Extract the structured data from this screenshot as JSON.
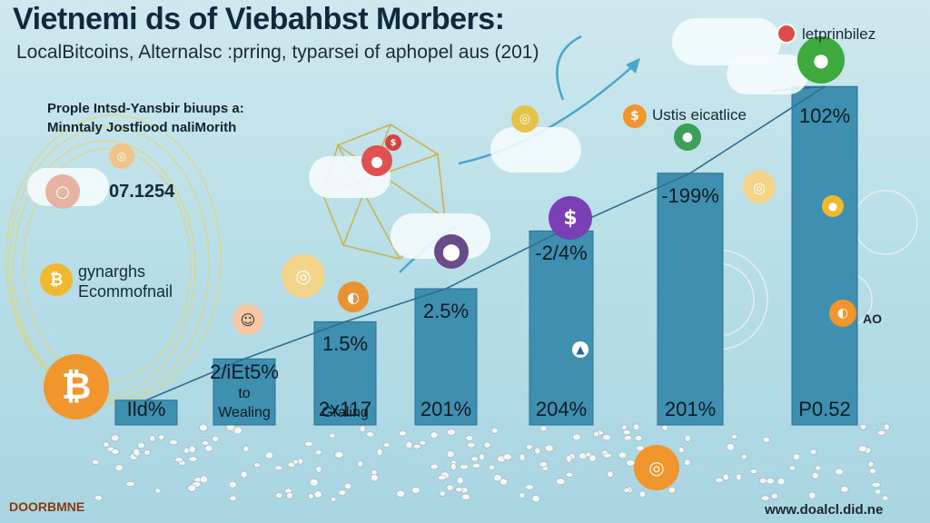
{
  "header": {
    "title": "Vietnemi ds of Viebahbst Morbers:",
    "subtitle": "LocalBitcoins, Alternalsc :prring, typarsei of aphopel aus (201)",
    "brand": "letprinbilez"
  },
  "left_panel": {
    "note_line1": "Prople Intsd-Yansbir biuups a:",
    "note_line2": "Minntaly Jostfiood naliMorith",
    "number": "07.1254",
    "label_line1": "gynarghs",
    "label_line2": "Ecommofnail"
  },
  "usd_label": "Ustis eicatlice",
  "side_mark": "AO",
  "chart_data": {
    "type": "bar",
    "bars": [
      {
        "value": 0.6,
        "top_label": "",
        "bottom_label": "Ild%",
        "sub_label": ""
      },
      {
        "value": 1.6,
        "top_label": "2/iEt5%",
        "bottom_label": "",
        "sub_label": "to\nWealing"
      },
      {
        "value": 2.5,
        "top_label": "1.5%",
        "bottom_label": "2x117",
        "sub_label": "Graling"
      },
      {
        "value": 3.3,
        "top_label": "2.5%",
        "bottom_label": "201%",
        "sub_label": ""
      },
      {
        "value": 4.7,
        "top_label": "-2/4%",
        "bottom_label": "204%",
        "sub_label": ""
      },
      {
        "value": 6.1,
        "top_label": "-199%",
        "bottom_label": "201%",
        "sub_label": ""
      },
      {
        "value": 8.2,
        "top_label": "102%",
        "bottom_label": "P0.52",
        "sub_label": ""
      }
    ],
    "ylim": [
      0,
      8.8
    ],
    "bar_color": "#3f8fb0",
    "line_color": "#2f6e8e"
  },
  "footer": {
    "left": "DOORBMNE",
    "right": "www.doalcl.did.ne"
  }
}
